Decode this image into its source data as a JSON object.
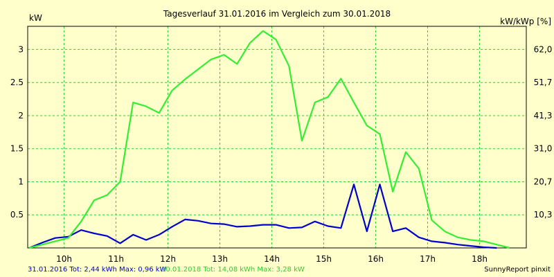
{
  "chart_data": {
    "type": "line",
    "title": "Tagesverlauf 31.01.2016 im Vergleich zum 30.01.2018",
    "ylabel_left": "kW",
    "ylabel_right": "kW/kWp [%]",
    "x_ticks": [
      "10h",
      "11h",
      "12h",
      "13h",
      "14h",
      "15h",
      "16h",
      "17h",
      "18h"
    ],
    "xlim": [
      9.3,
      18.9
    ],
    "ylim": [
      0,
      3.35
    ],
    "y_ticks_left": [
      "0.5",
      "1",
      "1.5",
      "2",
      "2.5",
      "3"
    ],
    "y_ticks_left_values": [
      0.5,
      1,
      1.5,
      2,
      2.5,
      3
    ],
    "y_ticks_right": [
      "10,3",
      "20,7",
      "31,0",
      "41,3",
      "51,7",
      "62,0"
    ],
    "grid": true,
    "series": [
      {
        "name": "31.01.2016",
        "color": "#0000cc",
        "x": [
          9.33,
          9.58,
          9.83,
          10.08,
          10.33,
          10.58,
          10.83,
          11.08,
          11.33,
          11.58,
          11.83,
          12.08,
          12.33,
          12.58,
          12.83,
          13.08,
          13.33,
          13.58,
          13.83,
          14.08,
          14.33,
          14.58,
          14.83,
          15.08,
          15.33,
          15.58,
          15.83,
          16.08,
          16.33,
          16.58,
          16.83,
          17.08,
          17.33,
          17.58,
          17.83,
          18.08,
          18.33
        ],
        "y": [
          0.0,
          0.08,
          0.15,
          0.17,
          0.27,
          0.22,
          0.18,
          0.07,
          0.2,
          0.12,
          0.2,
          0.32,
          0.43,
          0.41,
          0.37,
          0.36,
          0.32,
          0.33,
          0.35,
          0.35,
          0.3,
          0.31,
          0.4,
          0.33,
          0.3,
          0.96,
          0.25,
          0.96,
          0.25,
          0.3,
          0.16,
          0.1,
          0.08,
          0.05,
          0.03,
          0.01,
          0.0
        ]
      },
      {
        "name": "30.01.2018",
        "color": "#33ee33",
        "x": [
          9.33,
          9.58,
          9.83,
          10.08,
          10.33,
          10.58,
          10.83,
          11.08,
          11.33,
          11.58,
          11.83,
          12.08,
          12.33,
          12.58,
          12.83,
          13.08,
          13.33,
          13.58,
          13.83,
          14.08,
          14.33,
          14.58,
          14.83,
          15.08,
          15.33,
          15.58,
          15.83,
          16.08,
          16.33,
          16.58,
          16.83,
          17.08,
          17.33,
          17.58,
          17.83,
          18.08,
          18.33,
          18.58
        ],
        "y": [
          0.0,
          0.05,
          0.1,
          0.15,
          0.4,
          0.72,
          0.8,
          1.0,
          2.2,
          2.14,
          2.04,
          2.38,
          2.55,
          2.7,
          2.85,
          2.92,
          2.78,
          3.1,
          3.28,
          3.15,
          2.75,
          1.62,
          2.2,
          2.28,
          2.56,
          2.2,
          1.85,
          1.72,
          0.85,
          1.45,
          1.2,
          0.42,
          0.25,
          0.16,
          0.12,
          0.1,
          0.05,
          0.0
        ]
      }
    ],
    "footer": {
      "series1": "31.01.2016 Tot: 2,44 kWh Max: 0,96 kW",
      "series2": "30.01.2018 Tot: 14,08 kWh Max: 3,28 kW",
      "credit": "SunnyReport pinxit"
    }
  }
}
